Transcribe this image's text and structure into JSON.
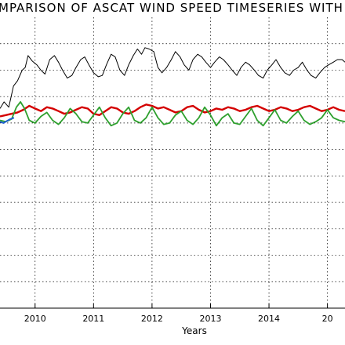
{
  "chart_data": {
    "type": "line",
    "title": "MPARISON OF ASCAT WIND SPEED TIMESERIES WITH",
    "xlabel": "Years",
    "ylabel": "",
    "x_ticks": [
      "2010",
      "2011",
      "2012",
      "2013",
      "2014",
      "20"
    ],
    "xlim": [
      2009.4,
      2015.3
    ],
    "ylim": [
      0,
      11
    ],
    "grid": true,
    "colors": {
      "black": "#000000",
      "red": "#d40000",
      "green": "#2ea02e",
      "blue": "#1e5fd0",
      "grid": "#000000"
    },
    "series": [
      {
        "key": "black",
        "x": [
          2009.4,
          2009.47,
          2009.55,
          2009.63,
          2009.7,
          2009.78,
          2009.83,
          2009.88,
          2009.95,
          2010.03,
          2010.1,
          2010.17,
          2010.25,
          2010.33,
          2010.4,
          2010.47,
          2010.55,
          2010.63,
          2010.7,
          2010.78,
          2010.85,
          2010.92,
          2011.0,
          2011.08,
          2011.15,
          2011.22,
          2011.3,
          2011.37,
          2011.45,
          2011.53,
          2011.6,
          2011.68,
          2011.75,
          2011.82,
          2011.88,
          2011.95,
          2012.03,
          2012.1,
          2012.17,
          2012.25,
          2012.33,
          2012.4,
          2012.48,
          2012.55,
          2012.63,
          2012.7,
          2012.78,
          2012.85,
          2012.92,
          2013.0,
          2013.07,
          2013.15,
          2013.22,
          2013.3,
          2013.37,
          2013.45,
          2013.52,
          2013.6,
          2013.67,
          2013.75,
          2013.82,
          2013.9,
          2013.97,
          2014.05,
          2014.12,
          2014.2,
          2014.27,
          2014.35,
          2014.42,
          2014.5,
          2014.57,
          2014.65,
          2014.72,
          2014.8,
          2014.87,
          2014.95,
          2015.02,
          2015.1,
          2015.17,
          2015.25,
          2015.3
        ],
        "y": [
          7.55,
          7.8,
          7.6,
          8.4,
          8.6,
          9.0,
          9.1,
          9.55,
          9.35,
          9.2,
          9.0,
          8.85,
          9.4,
          9.55,
          9.3,
          9.0,
          8.7,
          8.8,
          9.1,
          9.4,
          9.5,
          9.2,
          8.9,
          8.75,
          8.8,
          9.2,
          9.6,
          9.5,
          9.0,
          8.8,
          9.2,
          9.55,
          9.8,
          9.6,
          9.85,
          9.8,
          9.7,
          9.1,
          8.9,
          9.1,
          9.4,
          9.7,
          9.5,
          9.2,
          9.0,
          9.4,
          9.6,
          9.5,
          9.3,
          9.1,
          9.3,
          9.5,
          9.4,
          9.2,
          9.0,
          8.8,
          9.1,
          9.3,
          9.2,
          9.0,
          8.8,
          8.7,
          9.0,
          9.2,
          9.4,
          9.1,
          8.9,
          8.8,
          9.0,
          9.1,
          9.3,
          9.0,
          8.8,
          8.7,
          8.9,
          9.1,
          9.2,
          9.3,
          9.4,
          9.4,
          9.3
        ]
      },
      {
        "key": "red",
        "x": [
          2009.4,
          2009.5,
          2009.6,
          2009.7,
          2009.8,
          2009.9,
          2010.0,
          2010.1,
          2010.2,
          2010.3,
          2010.4,
          2010.5,
          2010.6,
          2010.7,
          2010.8,
          2010.9,
          2011.0,
          2011.1,
          2011.2,
          2011.3,
          2011.4,
          2011.5,
          2011.6,
          2011.7,
          2011.8,
          2011.9,
          2012.0,
          2012.1,
          2012.2,
          2012.3,
          2012.4,
          2012.5,
          2012.6,
          2012.7,
          2012.8,
          2012.9,
          2013.0,
          2013.1,
          2013.2,
          2013.3,
          2013.4,
          2013.5,
          2013.6,
          2013.7,
          2013.8,
          2013.9,
          2014.0,
          2014.1,
          2014.2,
          2014.3,
          2014.4,
          2014.5,
          2014.6,
          2014.7,
          2014.8,
          2014.9,
          2015.0,
          2015.1,
          2015.2,
          2015.3
        ],
        "y": [
          7.25,
          7.3,
          7.35,
          7.4,
          7.5,
          7.65,
          7.55,
          7.45,
          7.6,
          7.55,
          7.45,
          7.35,
          7.4,
          7.5,
          7.6,
          7.55,
          7.35,
          7.3,
          7.45,
          7.6,
          7.55,
          7.4,
          7.35,
          7.45,
          7.6,
          7.7,
          7.65,
          7.55,
          7.6,
          7.5,
          7.4,
          7.45,
          7.6,
          7.65,
          7.5,
          7.4,
          7.45,
          7.55,
          7.5,
          7.6,
          7.55,
          7.45,
          7.5,
          7.6,
          7.65,
          7.55,
          7.45,
          7.5,
          7.6,
          7.55,
          7.45,
          7.5,
          7.6,
          7.65,
          7.55,
          7.45,
          7.5,
          7.6,
          7.5,
          7.45
        ]
      },
      {
        "key": "green",
        "x": [
          2009.4,
          2009.5,
          2009.6,
          2009.68,
          2009.75,
          2009.82,
          2009.9,
          2010.0,
          2010.1,
          2010.2,
          2010.3,
          2010.4,
          2010.5,
          2010.6,
          2010.7,
          2010.8,
          2010.9,
          2011.0,
          2011.1,
          2011.2,
          2011.3,
          2011.4,
          2011.5,
          2011.6,
          2011.7,
          2011.8,
          2011.9,
          2012.0,
          2012.1,
          2012.2,
          2012.3,
          2012.4,
          2012.5,
          2012.6,
          2012.7,
          2012.8,
          2012.9,
          2013.0,
          2013.1,
          2013.2,
          2013.3,
          2013.4,
          2013.5,
          2013.6,
          2013.7,
          2013.8,
          2013.9,
          2014.0,
          2014.1,
          2014.2,
          2014.3,
          2014.4,
          2014.5,
          2014.6,
          2014.7,
          2014.8,
          2014.9,
          2015.0,
          2015.1,
          2015.2,
          2015.3
        ],
        "y": [
          7.1,
          7.05,
          7.15,
          7.6,
          7.8,
          7.55,
          7.1,
          7.0,
          7.25,
          7.4,
          7.1,
          6.95,
          7.2,
          7.55,
          7.35,
          7.05,
          7.0,
          7.3,
          7.6,
          7.2,
          6.9,
          7.0,
          7.35,
          7.6,
          7.1,
          7.0,
          7.2,
          7.6,
          7.2,
          6.95,
          7.0,
          7.3,
          7.45,
          7.1,
          6.95,
          7.2,
          7.6,
          7.3,
          6.9,
          7.2,
          7.35,
          7.0,
          6.95,
          7.25,
          7.55,
          7.1,
          6.9,
          7.2,
          7.5,
          7.1,
          7.0,
          7.25,
          7.45,
          7.1,
          6.95,
          7.05,
          7.2,
          7.5,
          7.2,
          7.1,
          7.05
        ]
      },
      {
        "key": "blue",
        "x": [
          2009.4,
          2009.46,
          2009.52,
          2009.58,
          2009.64
        ],
        "y": [
          7.05,
          7.0,
          7.08,
          7.15,
          7.2
        ]
      }
    ]
  }
}
